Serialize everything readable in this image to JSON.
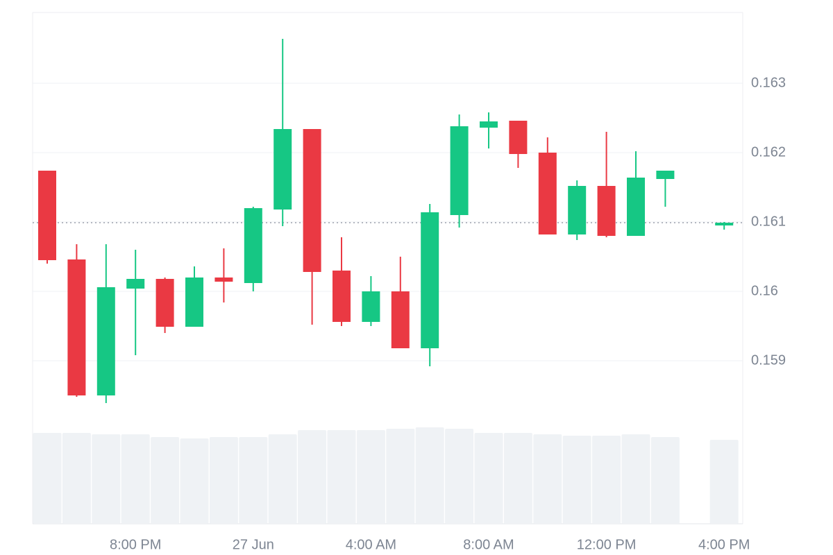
{
  "chart_data": {
    "type": "candlestick",
    "categories": [
      null,
      null,
      null,
      "8:00 PM",
      null,
      null,
      null,
      "27 Jun",
      null,
      null,
      null,
      "4:00 AM",
      null,
      null,
      null,
      "8:00 AM",
      null,
      null,
      null,
      "12:00 PM",
      null,
      null,
      null,
      "4:00 PM"
    ],
    "open": [
      0.16174,
      0.16046,
      0.1585,
      0.16004,
      0.16018,
      0.15949,
      0.1602,
      0.16012,
      0.16118,
      0.16234,
      0.1603,
      0.15956,
      0.16,
      0.15918,
      0.1611,
      0.16236,
      0.16246,
      0.162,
      0.16082,
      0.16152,
      0.1608,
      0.16162,
      null,
      0.16095
    ],
    "high": [
      0.16174,
      0.16068,
      0.16068,
      0.1606,
      0.1602,
      0.16036,
      0.16062,
      0.16122,
      0.16364,
      0.16234,
      0.16078,
      0.16022,
      0.1605,
      0.16126,
      0.16255,
      0.16258,
      0.16246,
      0.16222,
      0.1616,
      0.1623,
      0.16202,
      0.16174,
      null,
      0.161
    ],
    "low": [
      0.1604,
      0.15848,
      0.15839,
      0.15908,
      0.1594,
      0.15949,
      0.15984,
      0.16,
      0.16094,
      0.15952,
      0.1595,
      0.1595,
      0.15918,
      0.15892,
      0.16092,
      0.16206,
      0.16178,
      0.16082,
      0.16074,
      0.16078,
      0.1608,
      0.16122,
      null,
      0.16089
    ],
    "close": [
      0.16045,
      0.1585,
      0.16006,
      0.16018,
      0.15949,
      0.1602,
      0.16014,
      0.1612,
      0.16234,
      0.16028,
      0.15956,
      0.16,
      0.15918,
      0.16114,
      0.16238,
      0.16245,
      0.16198,
      0.16082,
      0.16152,
      0.1608,
      0.16164,
      0.16174,
      null,
      0.16099
    ],
    "volume": [
      131,
      131,
      129,
      129,
      125,
      123,
      125,
      125,
      129,
      135,
      135,
      135,
      137,
      139,
      137,
      131,
      131,
      129,
      127,
      127,
      129,
      125,
      null,
      121
    ],
    "up_color": "#16c784",
    "down_color": "#ea3943",
    "volume_color": "#eff2f5",
    "ylim": [
      0.15665,
      0.16402
    ],
    "yticks": [
      0.159,
      0.16,
      0.161,
      0.162,
      0.163
    ],
    "grid": true
  }
}
